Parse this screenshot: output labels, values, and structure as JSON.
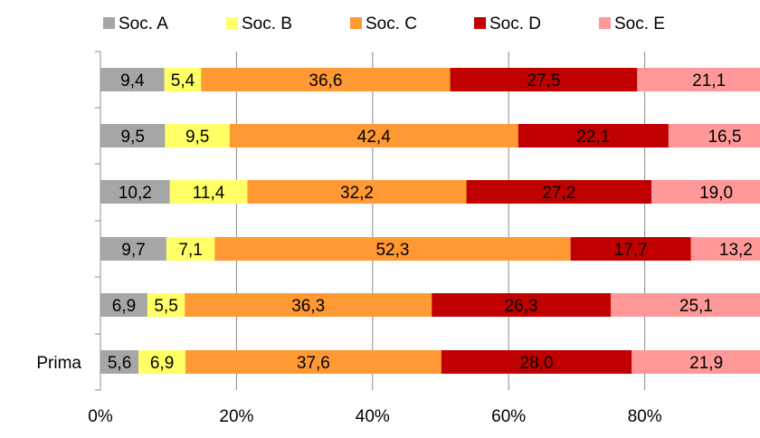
{
  "chart_data": {
    "type": "bar",
    "orientation": "horizontal",
    "stacked": "percent",
    "categories": [
      "",
      "",
      "",
      "",
      "",
      "Prima"
    ],
    "series": [
      {
        "name": "Soc. A",
        "color": "#a6a6a6",
        "values": [
          9.4,
          9.5,
          10.2,
          9.7,
          6.9,
          5.6
        ],
        "labels": [
          "9,4",
          "9,5",
          "10,2",
          "9,7",
          "6,9",
          "5,6"
        ]
      },
      {
        "name": "Soc. B",
        "color": "#ffff66",
        "values": [
          5.4,
          9.5,
          11.4,
          7.1,
          5.5,
          6.9
        ],
        "labels": [
          "5,4",
          "9,5",
          "11,4",
          "7,1",
          "5,5",
          "6,9"
        ]
      },
      {
        "name": "Soc. C",
        "color": "#ff9933",
        "values": [
          36.6,
          42.4,
          32.2,
          52.3,
          36.3,
          37.6
        ],
        "labels": [
          "36,6",
          "42,4",
          "32,2",
          "52,3",
          "36,3",
          "37,6"
        ]
      },
      {
        "name": "Soc. D",
        "color": "#c00000",
        "values": [
          27.5,
          22.1,
          27.2,
          17.7,
          26.3,
          28.0
        ],
        "labels": [
          "27,5",
          "22,1",
          "27,2",
          "17,7",
          "26,3",
          "28,0"
        ]
      },
      {
        "name": "Soc. E",
        "color": "#ff9999",
        "values": [
          21.1,
          16.5,
          19.0,
          13.2,
          25.1,
          21.9
        ],
        "labels": [
          "21,1",
          "16,5",
          "19,0",
          "13,2",
          "25,1",
          "21,9"
        ]
      }
    ],
    "x_ticks": [
      "0%",
      "20%",
      "40%",
      "60%",
      "80%"
    ],
    "xlim": [
      0,
      100
    ],
    "grid": "vertical",
    "legend": "top"
  }
}
